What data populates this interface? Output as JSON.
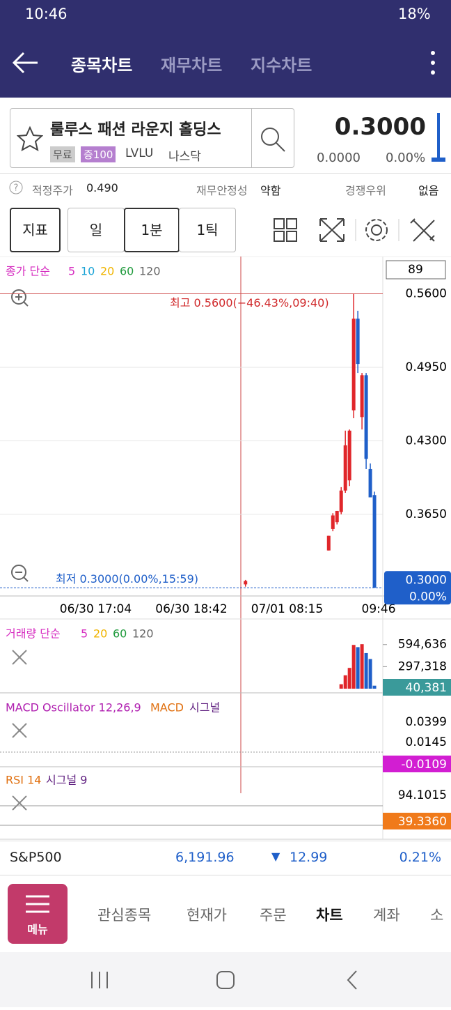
{
  "status_bar": {
    "time": "10:46",
    "battery": "18%"
  },
  "header": {
    "tabs": [
      "종목차트",
      "재무차트",
      "지수차트"
    ]
  },
  "stock": {
    "name": "룰루스 패션 라운지 홀딩스",
    "badges": [
      "무료",
      "증100"
    ],
    "ticker": "LVLU",
    "exchange": "나스닥",
    "price": "0.3000",
    "change": "0.0000",
    "change_pct": "0.00%"
  },
  "info": {
    "items": [
      {
        "label": "적정주가",
        "value": "0.490"
      },
      {
        "label": "재무안정성",
        "value": "약함"
      },
      {
        "label": "경쟁우위",
        "value": "없음"
      }
    ]
  },
  "toolbar": {
    "indicator": "지표",
    "periods": [
      "일",
      "1분",
      "1틱"
    ]
  },
  "chart_data": [
    {
      "type": "candlestick",
      "ma_label": "종가 단순",
      "ma_periods": [
        {
          "name": "5",
          "color": "#d62cc0"
        },
        {
          "name": "10",
          "color": "#1aa3d6"
        },
        {
          "name": "20",
          "color": "#f0b400"
        },
        {
          "name": "60",
          "color": "#1f9a3c"
        },
        {
          "name": "120",
          "color": "#666666"
        }
      ],
      "count_box": "89",
      "x": [
        59,
        79,
        80,
        81,
        82,
        83,
        84,
        85,
        86,
        87,
        88,
        89,
        90
      ],
      "open": [
        0.303,
        0.333,
        0.352,
        0.358,
        0.367,
        0.386,
        0.395,
        0.457,
        0.538,
        0.451,
        0.488,
        0.405,
        0.382
      ],
      "high": [
        0.307,
        0.346,
        0.366,
        0.368,
        0.389,
        0.439,
        0.44,
        0.56,
        0.545,
        0.49,
        0.49,
        0.41,
        0.385
      ],
      "low": [
        0.301,
        0.333,
        0.35,
        0.356,
        0.365,
        0.384,
        0.39,
        0.45,
        0.49,
        0.44,
        0.405,
        0.38,
        0.3
      ],
      "close": [
        0.306,
        0.346,
        0.364,
        0.368,
        0.386,
        0.426,
        0.439,
        0.538,
        0.498,
        0.488,
        0.414,
        0.38,
        0.3
      ],
      "up_color": "#e0262a",
      "down_color": "#1f5fc9",
      "xlim": [
        0,
        92
      ],
      "xticks": [
        {
          "value": 23,
          "label": "06/30 17:04"
        },
        {
          "value": 46,
          "label": "06/30 18:42"
        },
        {
          "value": 69,
          "label": "07/01 08:15"
        },
        {
          "value": 91,
          "label": "09:46"
        }
      ],
      "ylim": [
        0.294,
        0.593
      ],
      "yticks": [
        {
          "value": 0.365,
          "label": "0.3650"
        },
        {
          "value": 0.43,
          "label": "0.4300"
        },
        {
          "value": 0.495,
          "label": "0.4950"
        },
        {
          "value": 0.56,
          "label": "0.5600"
        }
      ],
      "high_line": {
        "value": 0.56,
        "label": "최고 0.5600(−46.43%,09:40)"
      },
      "low_line": {
        "value": 0.3,
        "label": "최저 0.3000(0.00%,15:59)"
      },
      "last": {
        "value": 0.3,
        "label": "0.3000",
        "pct": "0.00%"
      }
    },
    {
      "type": "bar",
      "ma_label": "거래량 단순",
      "ma_periods": [
        {
          "name": "5",
          "color": "#d62cc0"
        },
        {
          "name": "20",
          "color": "#f0b400"
        },
        {
          "name": "60",
          "color": "#1f9a3c"
        },
        {
          "name": "120",
          "color": "#666666"
        }
      ],
      "x": [
        82,
        83,
        84,
        85,
        86,
        87,
        88,
        89,
        90
      ],
      "values": [
        60000,
        180000,
        280000,
        590000,
        560000,
        600000,
        480000,
        400000,
        40381
      ],
      "value_labels": [
        null,
        null,
        null,
        null,
        null,
        null,
        null,
        null,
        "40,381"
      ],
      "colors": [
        "#e0262a",
        "#e0262a",
        "#e0262a",
        "#e0262a",
        "#1f5fc9",
        "#e0262a",
        "#1f5fc9",
        "#1f5fc9",
        "#1f5fc9"
      ],
      "xlim": [
        0,
        92
      ],
      "ylim": [
        0,
        940000
      ],
      "yticks": [
        {
          "value": 297318,
          "label": "297,318"
        },
        {
          "value": 594636,
          "label": "594,636"
        }
      ]
    }
  ],
  "indicators": {
    "macd": {
      "name": "MACD Oscillator 12,26,9",
      "macd": "MACD",
      "signal": "시그널",
      "ticks": [
        "0.0399",
        "0.0145"
      ],
      "current": "-0.0109"
    },
    "rsi": {
      "name": "RSI 14",
      "signal": "시그널 9",
      "ticks": [
        "94.1015"
      ],
      "current": "39.3360"
    }
  },
  "index_row": {
    "name": "S&P500",
    "value": "6,191.96",
    "change": "12.99",
    "change_pct": "0.21%"
  },
  "bottom_nav": {
    "menu": "메뉴",
    "items": [
      "관심종목",
      "현재가",
      "주문",
      "차트",
      "계좌",
      "소"
    ]
  }
}
